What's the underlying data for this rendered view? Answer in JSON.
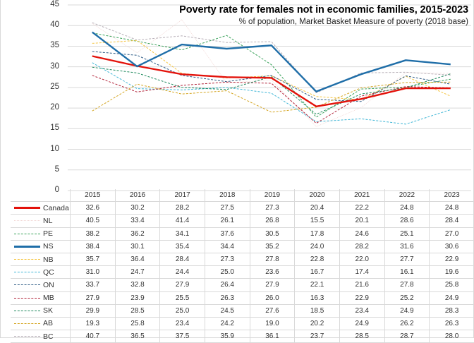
{
  "chart_data": {
    "type": "line",
    "title": "Poverty rate for females not in economic families, 2015-2023",
    "subtitle": "% of population, Market Basket Measure of poverty (2018 base)",
    "xlabel": "",
    "ylabel": "",
    "ylim": [
      0,
      45
    ],
    "yticks": [
      0,
      5,
      10,
      15,
      20,
      25,
      30,
      35,
      40,
      45
    ],
    "grid": true,
    "legend_placement": "data-table-bottom",
    "categories": [
      "2015",
      "2016",
      "2017",
      "2018",
      "2019",
      "2020",
      "2021",
      "2022",
      "2023"
    ],
    "series": [
      {
        "name": "Canada",
        "color": "#e3120b",
        "style": "solid-thick",
        "values": [
          32.6,
          30.2,
          28.2,
          27.5,
          27.3,
          20.4,
          22.2,
          24.8,
          24.8
        ]
      },
      {
        "name": "NL",
        "color": "#f2d7d5",
        "style": "dotted-thin",
        "values": [
          40.5,
          33.4,
          41.4,
          26.1,
          26.8,
          15.5,
          20.1,
          28.6,
          28.4
        ]
      },
      {
        "name": "PE",
        "color": "#3aa25a",
        "style": "dashed",
        "values": [
          38.2,
          36.2,
          34.1,
          37.6,
          30.5,
          17.8,
          24.6,
          25.1,
          27.0
        ]
      },
      {
        "name": "NS",
        "color": "#1f6ea8",
        "style": "solid-thick",
        "values": [
          38.4,
          30.1,
          35.4,
          34.4,
          35.2,
          24.0,
          28.2,
          31.6,
          30.6
        ]
      },
      {
        "name": "NB",
        "color": "#f5c542",
        "style": "dashed",
        "values": [
          35.7,
          36.4,
          28.4,
          27.3,
          27.8,
          22.8,
          22.0,
          27.7,
          22.9
        ]
      },
      {
        "name": "QC",
        "color": "#3fb6d6",
        "style": "dashed",
        "values": [
          31.0,
          24.7,
          24.4,
          25.0,
          23.6,
          16.7,
          17.4,
          16.1,
          19.6
        ]
      },
      {
        "name": "ON",
        "color": "#2e5b85",
        "style": "dashed",
        "values": [
          33.7,
          32.8,
          27.9,
          26.4,
          27.9,
          22.1,
          21.6,
          27.8,
          25.8
        ]
      },
      {
        "name": "MB",
        "color": "#b2243a",
        "style": "dashed",
        "values": [
          27.9,
          23.9,
          25.5,
          26.3,
          26.0,
          16.3,
          22.9,
          25.2,
          24.9
        ]
      },
      {
        "name": "SK",
        "color": "#1f8a5e",
        "style": "dashed",
        "values": [
          29.9,
          28.5,
          25.0,
          24.5,
          27.6,
          18.5,
          23.4,
          24.9,
          28.3
        ]
      },
      {
        "name": "AB",
        "color": "#d4a520",
        "style": "dashed",
        "values": [
          19.3,
          25.8,
          23.4,
          24.2,
          19.0,
          20.2,
          24.9,
          26.2,
          26.3
        ]
      },
      {
        "name": "BC",
        "color": "#b8b0b8",
        "style": "dashed",
        "values": [
          40.7,
          36.5,
          37.5,
          35.9,
          36.1,
          23.7,
          28.5,
          28.7,
          28.0
        ]
      }
    ]
  }
}
